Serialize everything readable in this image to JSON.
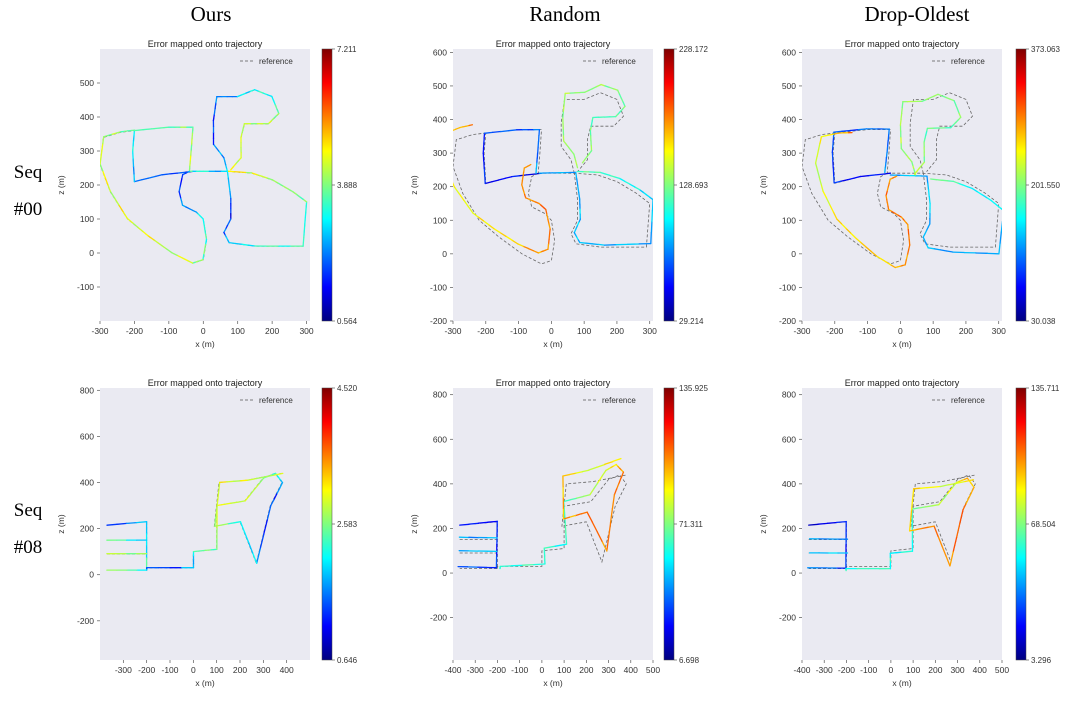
{
  "figure": {
    "columns": [
      "Ours",
      "Random",
      "Drop-Oldest"
    ],
    "rows": [
      {
        "line1": "Seq",
        "line2": "#00"
      },
      {
        "line1": "Seq",
        "line2": "#08"
      }
    ],
    "colormap": [
      "#00007f",
      "#0000ff",
      "#007fff",
      "#00ffff",
      "#7fff7f",
      "#ffff00",
      "#ff7f00",
      "#ff0000",
      "#7f0000"
    ]
  },
  "chart_data": [
    {
      "id": "ours-seq00",
      "type": "line",
      "title": "Error mapped onto trajectory",
      "xlabel": "x (m)",
      "ylabel": "z (m)",
      "legend": "reference",
      "xlim": [
        -300,
        310
      ],
      "ylim": [
        -200,
        600
      ],
      "xticks": [
        "-300",
        "-200",
        "-100",
        "0",
        "100",
        "200",
        "300"
      ],
      "xtick_values": [
        -300,
        -200,
        -100,
        0,
        100,
        200,
        300
      ],
      "yticks": [
        "-100",
        "0",
        "100",
        "200",
        "300",
        "400",
        "500"
      ],
      "ytick_values": [
        -100,
        0,
        100,
        200,
        300,
        400,
        500
      ],
      "colorbar": {
        "max": "7.211",
        "mid": "3.888",
        "min": "0.564"
      },
      "trajectory": "seq00",
      "noise": 3,
      "error": "low"
    },
    {
      "id": "random-seq00",
      "type": "line",
      "title": "Error mapped onto trajectory",
      "xlabel": "x (m)",
      "ylabel": "z (m)",
      "legend": "reference",
      "xlim": [
        -300,
        310
      ],
      "ylim": [
        -200,
        610
      ],
      "xticks": [
        "-300",
        "-200",
        "-100",
        "0",
        "100",
        "200",
        "300"
      ],
      "xtick_values": [
        -300,
        -200,
        -100,
        0,
        100,
        200,
        300
      ],
      "yticks": [
        "-200",
        "-100",
        "0",
        "100",
        "200",
        "300",
        "400",
        "500",
        "600"
      ],
      "ytick_values": [
        -200,
        -100,
        0,
        100,
        200,
        300,
        400,
        500,
        600
      ],
      "colorbar": {
        "max": "228.172",
        "mid": "128.693",
        "min": "29.214"
      },
      "trajectory": "seq00",
      "noise": 60,
      "error": "high"
    },
    {
      "id": "dropoldest-seq00",
      "type": "line",
      "title": "Error mapped onto trajectory",
      "xlabel": "x (m)",
      "ylabel": "z (m)",
      "legend": "reference",
      "xlim": [
        -300,
        310
      ],
      "ylim": [
        -200,
        610
      ],
      "xticks": [
        "-300",
        "-200",
        "-100",
        "0",
        "100",
        "200",
        "300"
      ],
      "xtick_values": [
        -300,
        -200,
        -100,
        0,
        100,
        200,
        300
      ],
      "yticks": [
        "-200",
        "-100",
        "0",
        "100",
        "200",
        "300",
        "400",
        "500",
        "600"
      ],
      "ytick_values": [
        -200,
        -100,
        0,
        100,
        200,
        300,
        400,
        500,
        600
      ],
      "colorbar": {
        "max": "373.063",
        "mid": "201.550",
        "min": "30.038"
      },
      "trajectory": "seq00",
      "noise": 75,
      "error": "high"
    },
    {
      "id": "ours-seq08",
      "type": "line",
      "title": "Error mapped onto trajectory",
      "xlabel": "x (m)",
      "ylabel": "z (m)",
      "legend": "reference",
      "xlim": [
        -400,
        500
      ],
      "ylim": [
        -370,
        810
      ],
      "xticks": [
        "-300",
        "-200",
        "-100",
        "0",
        "100",
        "200",
        "300",
        "400"
      ],
      "xtick_values": [
        -300,
        -200,
        -100,
        0,
        100,
        200,
        300,
        400
      ],
      "yticks": [
        "-200",
        "0",
        "200",
        "400",
        "600",
        "800"
      ],
      "ytick_values": [
        -200,
        0,
        200,
        400,
        600,
        800
      ],
      "colorbar": {
        "max": "4.520",
        "mid": "2.583",
        "min": "0.646"
      },
      "trajectory": "seq08",
      "noise": 4,
      "error": "low"
    },
    {
      "id": "random-seq08",
      "type": "line",
      "title": "Error mapped onto trajectory",
      "xlabel": "x (m)",
      "ylabel": "z (m)",
      "legend": "reference",
      "xlim": [
        -400,
        500
      ],
      "ylim": [
        -390,
        830
      ],
      "xticks": [
        "-400",
        "-300",
        "-200",
        "-100",
        "0",
        "100",
        "200",
        "300",
        "400",
        "500"
      ],
      "xtick_values": [
        -400,
        -300,
        -200,
        -100,
        0,
        100,
        200,
        300,
        400,
        500
      ],
      "yticks": [
        "-200",
        "0",
        "200",
        "400",
        "600",
        "800"
      ],
      "ytick_values": [
        -200,
        0,
        200,
        400,
        600,
        800
      ],
      "colorbar": {
        "max": "135.925",
        "mid": "71.311",
        "min": "6.698"
      },
      "trajectory": "seq08",
      "noise": 45,
      "error": "high"
    },
    {
      "id": "dropoldest-seq08",
      "type": "line",
      "title": "Error mapped onto trajectory",
      "xlabel": "x (m)",
      "ylabel": "z (m)",
      "legend": "reference",
      "xlim": [
        -400,
        500
      ],
      "ylim": [
        -390,
        830
      ],
      "xticks": [
        "-400",
        "-300",
        "-200",
        "-100",
        "0",
        "100",
        "200",
        "300",
        "400",
        "500"
      ],
      "xtick_values": [
        -400,
        -300,
        -200,
        -100,
        0,
        100,
        200,
        300,
        400,
        500
      ],
      "yticks": [
        "-200",
        "0",
        "200",
        "400",
        "600",
        "800"
      ],
      "ytick_values": [
        -200,
        0,
        200,
        400,
        600,
        800
      ],
      "colorbar": {
        "max": "135.711",
        "mid": "68.504",
        "min": "3.296"
      },
      "trajectory": "seq08",
      "noise": 45,
      "error": "high"
    }
  ],
  "trajectories": {
    "seq00": [
      [
        [
          -30,
          240
        ],
        [
          -120,
          230
        ],
        [
          -200,
          210
        ],
        [
          -205,
          300
        ],
        [
          -200,
          360
        ],
        [
          -100,
          370
        ],
        [
          -30,
          370
        ],
        [
          -35,
          300
        ],
        [
          -40,
          240
        ]
      ],
      [
        [
          -40,
          240
        ],
        [
          0,
          240
        ],
        [
          70,
          240
        ],
        [
          80,
          160
        ],
        [
          80,
          100
        ],
        [
          60,
          60
        ],
        [
          75,
          30
        ],
        [
          150,
          20
        ],
        [
          290,
          20
        ],
        [
          300,
          150
        ],
        [
          260,
          180
        ],
        [
          200,
          215
        ],
        [
          140,
          235
        ],
        [
          70,
          240
        ]
      ],
      [
        [
          70,
          240
        ],
        [
          60,
          280
        ],
        [
          30,
          320
        ],
        [
          30,
          390
        ],
        [
          40,
          460
        ],
        [
          100,
          460
        ],
        [
          150,
          480
        ],
        [
          200,
          460
        ],
        [
          220,
          410
        ],
        [
          190,
          380
        ],
        [
          120,
          380
        ],
        [
          110,
          340
        ],
        [
          110,
          280
        ],
        [
          80,
          245
        ]
      ],
      [
        [
          -40,
          240
        ],
        [
          -60,
          230
        ],
        [
          -70,
          180
        ],
        [
          -60,
          140
        ],
        [
          -20,
          120
        ],
        [
          0,
          100
        ],
        [
          10,
          40
        ],
        [
          0,
          -20
        ],
        [
          -30,
          -30
        ],
        [
          -90,
          0
        ],
        [
          -160,
          50
        ],
        [
          -220,
          100
        ],
        [
          -270,
          180
        ],
        [
          -300,
          260
        ],
        [
          -290,
          340
        ],
        [
          -240,
          355
        ],
        [
          -200,
          360
        ]
      ]
    ],
    "seq08": [
      [
        [
          -370,
          215
        ],
        [
          -200,
          230
        ],
        [
          -200,
          20
        ],
        [
          -370,
          20
        ]
      ],
      [
        [
          -370,
          150
        ],
        [
          -200,
          150
        ]
      ],
      [
        [
          -370,
          90
        ],
        [
          -200,
          90
        ]
      ],
      [
        [
          -200,
          20
        ],
        [
          -200,
          30
        ],
        [
          0,
          30
        ],
        [
          0,
          100
        ],
        [
          100,
          110
        ],
        [
          100,
          300
        ],
        [
          220,
          320
        ],
        [
          300,
          420
        ],
        [
          350,
          440
        ],
        [
          380,
          400
        ],
        [
          330,
          300
        ],
        [
          270,
          50
        ],
        [
          200,
          230
        ],
        [
          90,
          210
        ],
        [
          110,
          400
        ],
        [
          230,
          410
        ],
        [
          380,
          440
        ]
      ]
    ]
  }
}
